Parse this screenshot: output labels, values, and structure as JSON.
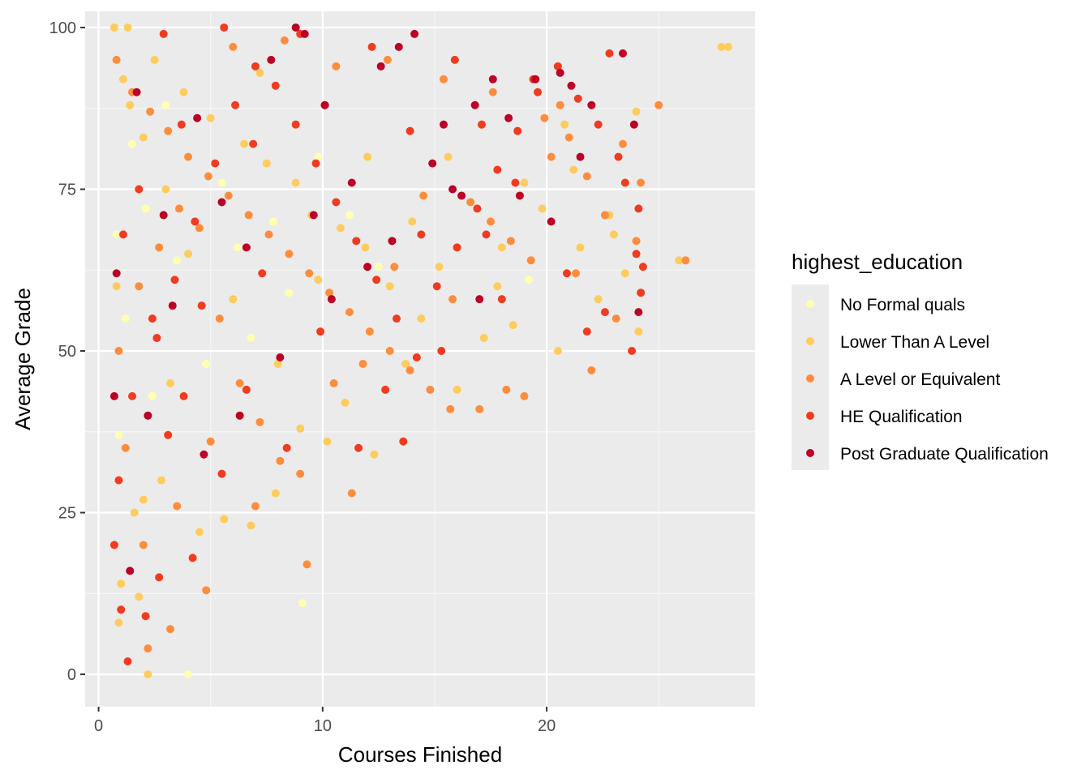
{
  "chart_data": {
    "type": "scatter",
    "xlabel": "Courses Finished",
    "ylabel": "Average Grade",
    "xlim": [
      -0.6,
      29.3
    ],
    "ylim": [
      -5,
      102.5
    ],
    "x_ticks": [
      0,
      10,
      20
    ],
    "y_ticks": [
      0,
      25,
      50,
      75,
      100
    ],
    "x_tick_labels": [
      "0",
      "10",
      "20"
    ],
    "y_tick_labels": [
      "0",
      "25",
      "50",
      "75",
      "100"
    ],
    "grid": true,
    "panel_background": "#EBEBEB",
    "legend": {
      "title": "highest_education",
      "placement": "right",
      "entries": [
        {
          "label": "No Formal quals",
          "color": "#FFFFB2"
        },
        {
          "label": "Lower Than A Level",
          "color": "#FECC5C"
        },
        {
          "label": "A Level or Equivalent",
          "color": "#FD8D3C"
        },
        {
          "label": "HE Qualification",
          "color": "#F03B20"
        },
        {
          "label": "Post Graduate Qualification",
          "color": "#BD0026"
        }
      ]
    },
    "series": [
      {
        "name": "No Formal quals",
        "color": "#FFFFB2",
        "points": [
          [
            0.8,
            68
          ],
          [
            1.2,
            55
          ],
          [
            2.1,
            72
          ],
          [
            3.5,
            64
          ],
          [
            4.8,
            48
          ],
          [
            6.2,
            66
          ],
          [
            7.8,
            70
          ],
          [
            9.1,
            11
          ],
          [
            4.0,
            0
          ],
          [
            2.4,
            43
          ],
          [
            8.5,
            59
          ],
          [
            11.2,
            71
          ],
          [
            1.5,
            82
          ],
          [
            5.5,
            76
          ],
          [
            12.5,
            63
          ],
          [
            19.2,
            61
          ],
          [
            0.9,
            37
          ],
          [
            3.0,
            88
          ],
          [
            6.8,
            52
          ],
          [
            9.8,
            80
          ]
        ]
      },
      {
        "name": "Lower Than A Level",
        "color": "#FECC5C",
        "points": [
          [
            0.7,
            100
          ],
          [
            1.3,
            100
          ],
          [
            1.0,
            14
          ],
          [
            2.2,
            0
          ],
          [
            0.9,
            8
          ],
          [
            1.6,
            25
          ],
          [
            2.8,
            30
          ],
          [
            3.2,
            45
          ],
          [
            4.5,
            22
          ],
          [
            5.6,
            24
          ],
          [
            6.8,
            23
          ],
          [
            7.9,
            28
          ],
          [
            10.2,
            36
          ],
          [
            12.3,
            34
          ],
          [
            13.7,
            48
          ],
          [
            14.4,
            55
          ],
          [
            15.2,
            63
          ],
          [
            16.6,
            73
          ],
          [
            17.8,
            60
          ],
          [
            19.0,
            76
          ],
          [
            20.5,
            50
          ],
          [
            20.8,
            85
          ],
          [
            21.5,
            66
          ],
          [
            22.3,
            58
          ],
          [
            23.0,
            68
          ],
          [
            23.5,
            62
          ],
          [
            24.1,
            53
          ],
          [
            24.0,
            87
          ],
          [
            25.9,
            64
          ],
          [
            27.8,
            97
          ],
          [
            28.1,
            97
          ],
          [
            1.8,
            12
          ],
          [
            2.0,
            27
          ],
          [
            0.8,
            60
          ],
          [
            1.1,
            92
          ],
          [
            2.5,
            95
          ],
          [
            3.8,
            90
          ],
          [
            5.0,
            86
          ],
          [
            6.5,
            82
          ],
          [
            7.5,
            79
          ],
          [
            8.8,
            76
          ],
          [
            9.5,
            71
          ],
          [
            10.8,
            69
          ],
          [
            11.9,
            66
          ],
          [
            13.0,
            60
          ],
          [
            18.5,
            54
          ],
          [
            16.0,
            44
          ],
          [
            17.2,
            52
          ],
          [
            14.0,
            70
          ],
          [
            12.0,
            80
          ],
          [
            11.0,
            42
          ],
          [
            9.0,
            38
          ],
          [
            8.0,
            48
          ],
          [
            6.0,
            58
          ],
          [
            4.0,
            65
          ],
          [
            3.0,
            75
          ],
          [
            2.0,
            83
          ],
          [
            1.4,
            88
          ],
          [
            7.2,
            93
          ],
          [
            9.8,
            61
          ],
          [
            15.6,
            80
          ],
          [
            19.8,
            72
          ],
          [
            21.2,
            78
          ],
          [
            22.8,
            71
          ],
          [
            18.0,
            66
          ]
        ]
      },
      {
        "name": "A Level or Equivalent",
        "color": "#FD8D3C",
        "points": [
          [
            0.8,
            95
          ],
          [
            1.5,
            90
          ],
          [
            2.3,
            87
          ],
          [
            3.1,
            84
          ],
          [
            4.0,
            80
          ],
          [
            4.9,
            77
          ],
          [
            5.8,
            74
          ],
          [
            6.7,
            71
          ],
          [
            7.6,
            68
          ],
          [
            8.5,
            65
          ],
          [
            9.4,
            62
          ],
          [
            10.3,
            59
          ],
          [
            11.2,
            56
          ],
          [
            12.1,
            53
          ],
          [
            13.0,
            50
          ],
          [
            13.9,
            47
          ],
          [
            14.8,
            44
          ],
          [
            15.7,
            41
          ],
          [
            16.6,
            73
          ],
          [
            17.5,
            70
          ],
          [
            18.4,
            67
          ],
          [
            19.3,
            64
          ],
          [
            20.2,
            80
          ],
          [
            21.0,
            83
          ],
          [
            21.8,
            77
          ],
          [
            22.6,
            71
          ],
          [
            23.4,
            82
          ],
          [
            24.2,
            76
          ],
          [
            25.0,
            88
          ],
          [
            26.2,
            64
          ],
          [
            1.2,
            35
          ],
          [
            2.0,
            20
          ],
          [
            3.2,
            7
          ],
          [
            2.2,
            4
          ],
          [
            0.9,
            50
          ],
          [
            1.8,
            60
          ],
          [
            2.7,
            66
          ],
          [
            3.6,
            72
          ],
          [
            4.5,
            69
          ],
          [
            5.4,
            55
          ],
          [
            6.3,
            45
          ],
          [
            7.2,
            39
          ],
          [
            8.1,
            33
          ],
          [
            9.0,
            31
          ],
          [
            10.5,
            45
          ],
          [
            11.8,
            48
          ],
          [
            13.2,
            63
          ],
          [
            14.5,
            74
          ],
          [
            15.8,
            58
          ],
          [
            17.0,
            41
          ],
          [
            18.2,
            44
          ],
          [
            19.0,
            43
          ],
          [
            20.6,
            88
          ],
          [
            21.3,
            62
          ],
          [
            22.0,
            47
          ],
          [
            23.1,
            55
          ],
          [
            24.0,
            67
          ],
          [
            6.0,
            97
          ],
          [
            8.3,
            98
          ],
          [
            10.6,
            94
          ],
          [
            12.9,
            95
          ],
          [
            15.4,
            92
          ],
          [
            17.6,
            90
          ],
          [
            19.9,
            86
          ],
          [
            9.3,
            17
          ],
          [
            11.3,
            28
          ],
          [
            4.8,
            13
          ],
          [
            5.0,
            36
          ],
          [
            3.5,
            26
          ],
          [
            7.0,
            26
          ]
        ]
      },
      {
        "name": "HE Qualification",
        "color": "#F03B20",
        "points": [
          [
            0.7,
            20
          ],
          [
            1.0,
            10
          ],
          [
            1.3,
            2
          ],
          [
            2.1,
            9
          ],
          [
            0.9,
            30
          ],
          [
            1.5,
            43
          ],
          [
            2.6,
            52
          ],
          [
            3.4,
            61
          ],
          [
            4.3,
            70
          ],
          [
            5.2,
            79
          ],
          [
            6.1,
            88
          ],
          [
            7.0,
            94
          ],
          [
            7.9,
            91
          ],
          [
            8.8,
            85
          ],
          [
            9.7,
            79
          ],
          [
            10.6,
            73
          ],
          [
            11.5,
            67
          ],
          [
            12.4,
            61
          ],
          [
            13.3,
            55
          ],
          [
            14.2,
            49
          ],
          [
            15.1,
            60
          ],
          [
            16.0,
            66
          ],
          [
            16.9,
            72
          ],
          [
            17.8,
            78
          ],
          [
            18.7,
            84
          ],
          [
            19.6,
            90
          ],
          [
            20.5,
            94
          ],
          [
            21.4,
            89
          ],
          [
            22.3,
            85
          ],
          [
            23.2,
            80
          ],
          [
            24.1,
            72
          ],
          [
            24.3,
            63
          ],
          [
            24.2,
            59
          ],
          [
            23.8,
            50
          ],
          [
            22.6,
            56
          ],
          [
            21.8,
            53
          ],
          [
            20.9,
            62
          ],
          [
            17.3,
            68
          ],
          [
            18.6,
            76
          ],
          [
            14.4,
            68
          ],
          [
            13.6,
            36
          ],
          [
            11.6,
            35
          ],
          [
            8.4,
            35
          ],
          [
            6.6,
            44
          ],
          [
            5.5,
            31
          ],
          [
            3.8,
            43
          ],
          [
            2.4,
            55
          ],
          [
            1.8,
            75
          ],
          [
            2.9,
            99
          ],
          [
            5.6,
            100
          ],
          [
            9.0,
            99
          ],
          [
            12.2,
            97
          ],
          [
            15.9,
            95
          ],
          [
            19.4,
            92
          ],
          [
            22.8,
            96
          ],
          [
            3.7,
            85
          ],
          [
            6.9,
            82
          ],
          [
            10.1,
            88
          ],
          [
            13.9,
            84
          ],
          [
            17.1,
            85
          ],
          [
            1.1,
            68
          ],
          [
            4.6,
            57
          ],
          [
            7.3,
            62
          ],
          [
            9.9,
            53
          ],
          [
            12.8,
            44
          ],
          [
            15.3,
            50
          ],
          [
            18.0,
            58
          ],
          [
            23.5,
            76
          ],
          [
            24.0,
            65
          ],
          [
            2.7,
            15
          ],
          [
            4.2,
            18
          ],
          [
            3.1,
            37
          ]
        ]
      },
      {
        "name": "Post Graduate Qualification",
        "color": "#BD0026",
        "points": [
          [
            0.7,
            43
          ],
          [
            1.4,
            16
          ],
          [
            0.8,
            62
          ],
          [
            2.2,
            40
          ],
          [
            3.3,
            57
          ],
          [
            4.4,
            86
          ],
          [
            5.5,
            73
          ],
          [
            6.6,
            66
          ],
          [
            7.7,
            95
          ],
          [
            8.8,
            100
          ],
          [
            9.2,
            99
          ],
          [
            10.1,
            88
          ],
          [
            11.3,
            76
          ],
          [
            12.6,
            94
          ],
          [
            13.4,
            97
          ],
          [
            14.1,
            99
          ],
          [
            15.4,
            85
          ],
          [
            16.2,
            74
          ],
          [
            17.0,
            58
          ],
          [
            18.3,
            86
          ],
          [
            19.5,
            92
          ],
          [
            20.6,
            93
          ],
          [
            21.1,
            91
          ],
          [
            22.0,
            88
          ],
          [
            23.4,
            96
          ],
          [
            23.9,
            85
          ],
          [
            24.1,
            56
          ],
          [
            21.5,
            80
          ],
          [
            20.2,
            70
          ],
          [
            18.8,
            74
          ],
          [
            16.8,
            88
          ],
          [
            14.9,
            79
          ],
          [
            12.0,
            63
          ],
          [
            10.4,
            58
          ],
          [
            8.1,
            49
          ],
          [
            6.3,
            40
          ],
          [
            4.7,
            34
          ],
          [
            2.9,
            71
          ],
          [
            1.7,
            90
          ],
          [
            9.6,
            71
          ],
          [
            13.1,
            67
          ],
          [
            15.8,
            75
          ],
          [
            17.6,
            92
          ]
        ]
      }
    ]
  }
}
